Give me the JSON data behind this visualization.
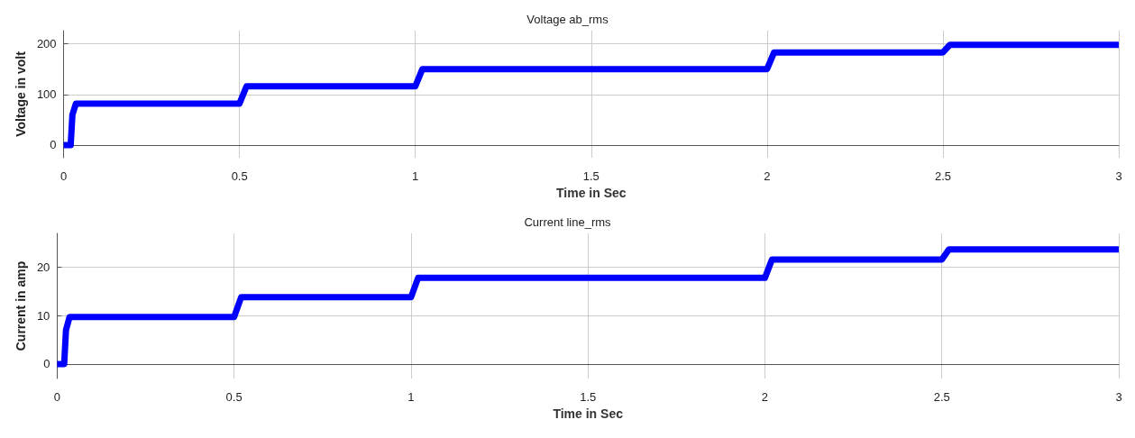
{
  "chart_data": [
    {
      "type": "line",
      "title": "Voltage ab_rms",
      "xlabel": "Time in Sec",
      "ylabel": "Voltage in volt",
      "x": [
        0,
        0.02,
        0.025,
        0.035,
        0.5,
        0.52,
        1.0,
        1.02,
        2.0,
        2.02,
        2.5,
        2.52,
        3.0
      ],
      "series": [
        {
          "color": "#0000ff",
          "values": [
            0,
            0,
            60,
            82,
            82,
            116,
            116,
            150,
            150,
            183,
            183,
            198,
            198
          ]
        }
      ],
      "xlim": [
        0,
        3
      ],
      "xticks": [
        0,
        0.5,
        1,
        1.5,
        2,
        2.5,
        3
      ],
      "ylim": [
        -25,
        226
      ],
      "yticks": [
        0,
        100,
        200
      ],
      "grid": true
    },
    {
      "type": "line",
      "title": "Current line_rms",
      "xlabel": "Time in Sec",
      "ylabel": "Current in amp",
      "x": [
        0,
        0.02,
        0.025,
        0.035,
        0.5,
        0.52,
        1.0,
        1.02,
        2.0,
        2.02,
        2.5,
        2.52,
        3.0
      ],
      "series": [
        {
          "color": "#0000ff",
          "values": [
            0,
            0,
            7,
            9.7,
            9.7,
            13.8,
            13.8,
            17.8,
            17.8,
            21.6,
            21.6,
            23.7,
            23.7
          ]
        }
      ],
      "xlim": [
        0,
        3
      ],
      "xticks": [
        0,
        0.5,
        1,
        1.5,
        2,
        2.5,
        3
      ],
      "ylim": [
        -3,
        27
      ],
      "yticks": [
        0,
        10,
        20
      ],
      "grid": true
    }
  ]
}
